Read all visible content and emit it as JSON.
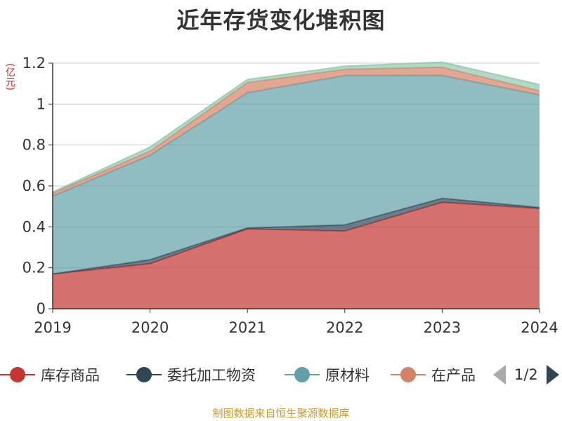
{
  "title": "近年存货变化堆积图",
  "unit": "(亿元)",
  "source": "制图数据来自恒生聚源数据库",
  "pager": "1/2",
  "chart_data": {
    "type": "area",
    "stacked": true,
    "categories": [
      "2019",
      "2020",
      "2021",
      "2022",
      "2023",
      "2024"
    ],
    "ylim": [
      0,
      1.2
    ],
    "yticks": [
      "0",
      "0.2",
      "0.4",
      "0.6",
      "0.8",
      "1",
      "1.2"
    ],
    "grid": true,
    "legend_position": "bottom",
    "series": [
      {
        "name": "库存商品",
        "color": "#c23531",
        "values": [
          0.17,
          0.22,
          0.39,
          0.38,
          0.52,
          0.49
        ]
      },
      {
        "name": "委托加工物资",
        "color": "#2f4554",
        "values": [
          0.0,
          0.02,
          0.005,
          0.03,
          0.02,
          0.005
        ]
      },
      {
        "name": "原材料",
        "color": "#61a0a8",
        "values": [
          0.38,
          0.51,
          0.66,
          0.73,
          0.6,
          0.55
        ]
      },
      {
        "name": "在产品",
        "color": "#d48265",
        "values": [
          0.015,
          0.02,
          0.05,
          0.03,
          0.04,
          0.02
        ]
      },
      {
        "name": "",
        "color": "#91c7ae",
        "values": [
          0.005,
          0.02,
          0.015,
          0.015,
          0.025,
          0.03
        ]
      }
    ]
  }
}
